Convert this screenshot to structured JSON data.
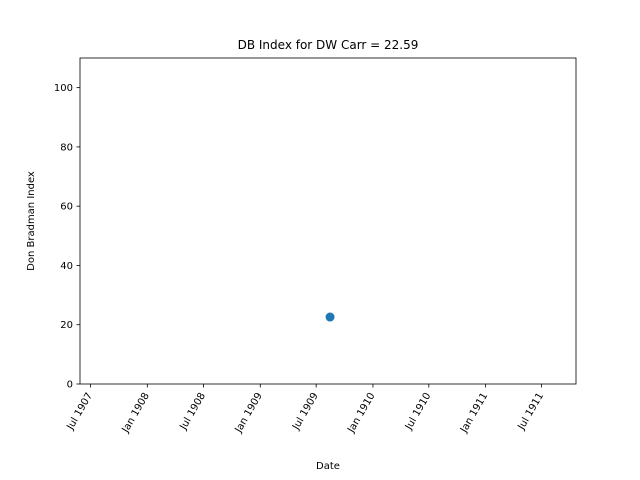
{
  "chart_data": {
    "type": "scatter",
    "title": "DB Index for DW Carr = 22.59",
    "xlabel": "Date",
    "ylabel": "Don Bradman Index",
    "x_tick_labels": [
      "Jul 1907",
      "Jan 1908",
      "Jul 1908",
      "Jan 1909",
      "Jul 1909",
      "Jan 1910",
      "Jul 1910",
      "Jan 1911",
      "Jul 1911"
    ],
    "y_ticks": [
      0,
      20,
      40,
      60,
      80,
      100
    ],
    "ylim": [
      0,
      110
    ],
    "grid": false,
    "series": [
      {
        "color": "#1f77b4",
        "points": [
          {
            "x": "1909-08-15",
            "y": 22.59
          }
        ]
      }
    ]
  }
}
